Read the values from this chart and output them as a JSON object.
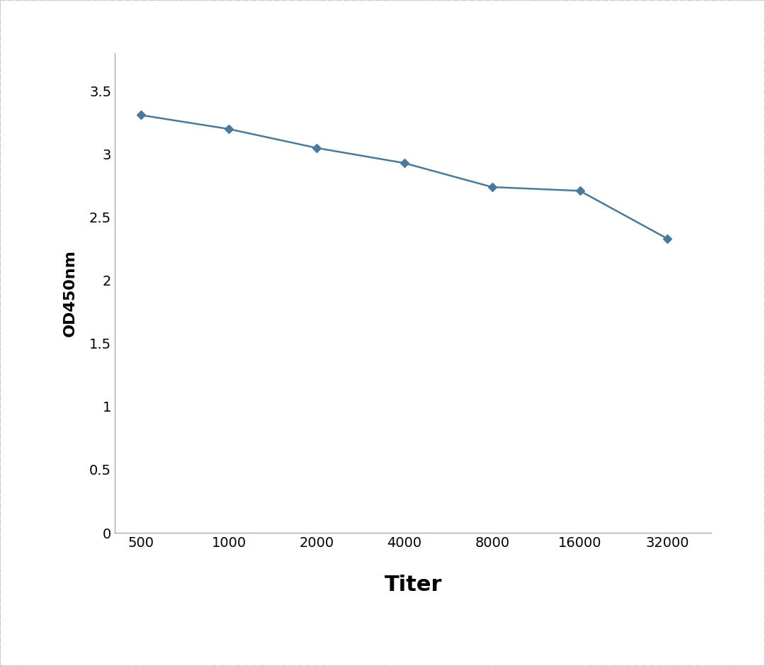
{
  "x_values": [
    0,
    1,
    2,
    3,
    4,
    5,
    6
  ],
  "y_values": [
    3.31,
    3.2,
    3.05,
    2.93,
    2.74,
    2.71,
    2.33
  ],
  "x_label": "Titer",
  "y_label": "OD450nm",
  "x_ticklabels": [
    "500",
    "1000",
    "2000",
    "4000",
    "8000",
    "16000",
    "32000"
  ],
  "y_ticks": [
    0,
    0.5,
    1,
    1.5,
    2,
    2.5,
    3,
    3.5
  ],
  "ylim": [
    0,
    3.8
  ],
  "xlim": [
    -0.3,
    6.5
  ],
  "line_color": "#4a7a9b",
  "marker": "D",
  "marker_size": 6,
  "line_width": 1.8,
  "background_color": "#ffffff",
  "border_color": "#c8c8c8",
  "x_label_fontsize": 22,
  "y_label_fontsize": 16,
  "tick_fontsize": 14
}
